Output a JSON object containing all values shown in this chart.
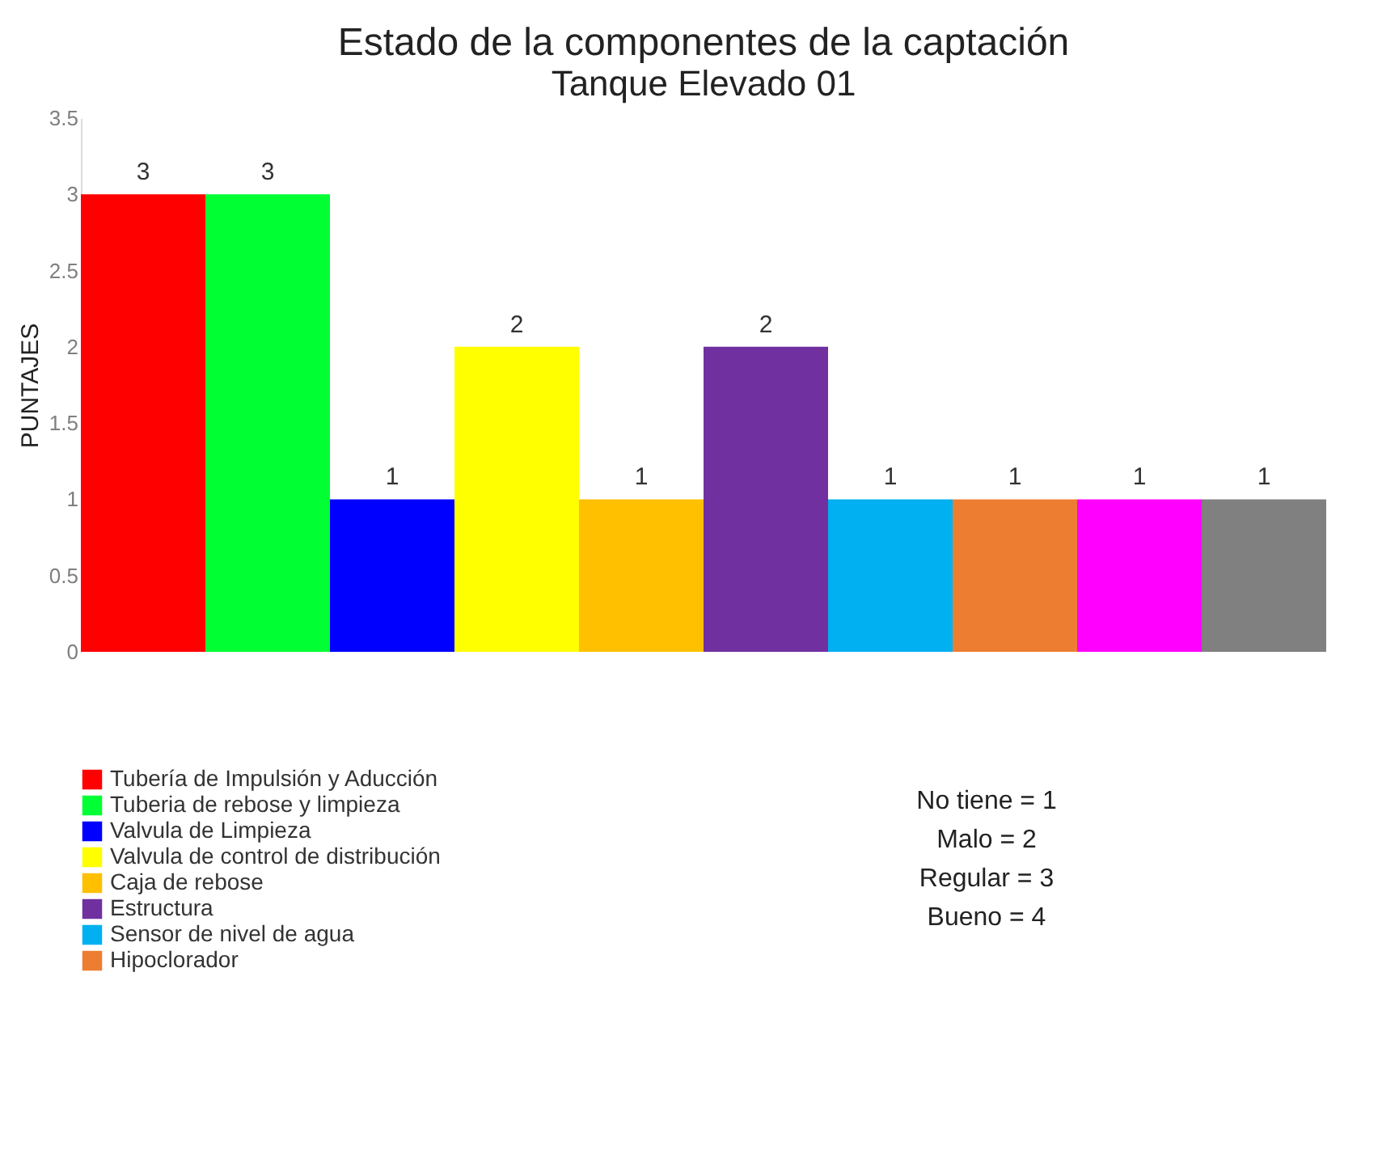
{
  "chart_data": {
    "type": "bar",
    "title": "Estado de la componentes de la captación",
    "subtitle": "Tanque Elevado 01",
    "ylabel": "PUNTAJES",
    "categories": [
      null
    ],
    "series": [
      {
        "name": "Tubería de Impulsión y Aducción",
        "color": "#ff0000",
        "values": [
          3
        ]
      },
      {
        "name": "Tuberia de rebose y limpieza",
        "color": "#00ff33",
        "values": [
          3
        ]
      },
      {
        "name": "Valvula de Limpieza",
        "color": "#0000ff",
        "values": [
          1
        ]
      },
      {
        "name": "Valvula de control de distribución",
        "color": "#ffff00",
        "values": [
          2
        ]
      },
      {
        "name": "Caja de rebose",
        "color": "#ffc000",
        "values": [
          1
        ]
      },
      {
        "name": "Estructura",
        "color": "#7030a0",
        "values": [
          2
        ]
      },
      {
        "name": "Sensor de nivel de agua",
        "color": "#00b0f0",
        "values": [
          1
        ]
      },
      {
        "name": "Hipoclorador",
        "color": "#ed7d31",
        "values": [
          1
        ]
      },
      {
        "color": "#ff00ff",
        "values": [
          1
        ]
      },
      {
        "color": "#808080",
        "values": [
          1
        ]
      }
    ],
    "ylim": [
      0,
      3.5
    ],
    "yticks": [
      0,
      0.5,
      1,
      1.5,
      2,
      2.5,
      3,
      3.5
    ],
    "data_labels": true,
    "legend": "bottom",
    "annotations": [
      "No tiene  = 1",
      "Malo = 2",
      "Regular = 3",
      "Bueno = 4"
    ]
  }
}
